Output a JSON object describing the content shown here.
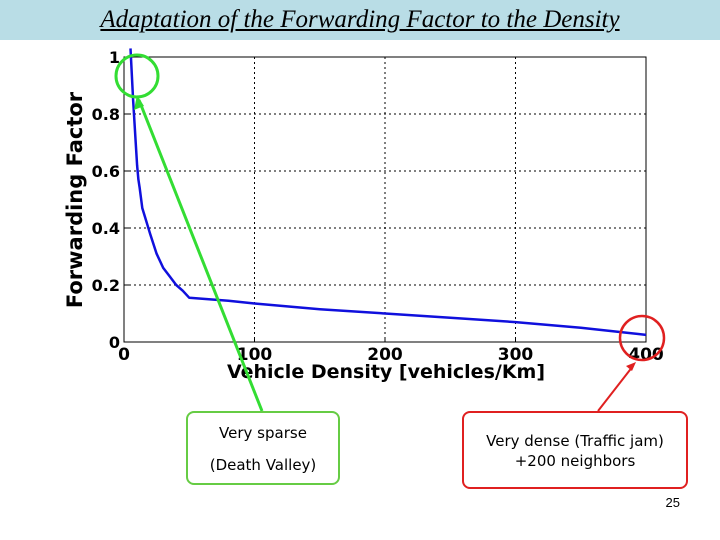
{
  "slide": {
    "title": "Adaptation of the Forwarding Factor to the Density",
    "page_number": "25",
    "colors": {
      "title_bar": "#b9dde6",
      "curve": "#1010dd",
      "sparse_highlight": "#33dd33",
      "dense_highlight": "#e02020"
    }
  },
  "chart_data": {
    "type": "line",
    "xlabel": "Vehicle Density [vehicles/Km]",
    "ylabel": "Forwarding Factor",
    "xlim": [
      0,
      400
    ],
    "ylim": [
      0,
      1
    ],
    "grid": true,
    "x_ticks": [
      0,
      100,
      200,
      300,
      400
    ],
    "y_ticks": [
      0,
      0.2,
      0.4,
      0.6,
      0.8,
      1
    ],
    "x_tick_labels": [
      "0",
      "100",
      "200",
      "300",
      "400"
    ],
    "y_tick_labels": [
      "0",
      "0.2",
      "0.4",
      "0.6",
      "0.8",
      "1"
    ],
    "series": [
      {
        "x": [
          5,
          7,
          9,
          10,
          11,
          12,
          14,
          16,
          18,
          20,
          25,
          30,
          35,
          40,
          45,
          50,
          60,
          80,
          100,
          150,
          200,
          250,
          300,
          350,
          380,
          400
        ],
        "y": [
          1.03,
          0.85,
          0.7,
          0.62,
          0.57,
          0.54,
          0.47,
          0.44,
          0.41,
          0.38,
          0.31,
          0.26,
          0.23,
          0.2,
          0.18,
          0.155,
          0.152,
          0.145,
          0.135,
          0.115,
          0.1,
          0.085,
          0.07,
          0.05,
          0.035,
          0.025
        ]
      }
    ]
  },
  "annotations": {
    "sparse": {
      "line1": "Very sparse",
      "line2": "(Death Valley)"
    },
    "dense": {
      "line1": "Very dense (Traffic jam)",
      "line2": "+200 neighbors"
    }
  }
}
